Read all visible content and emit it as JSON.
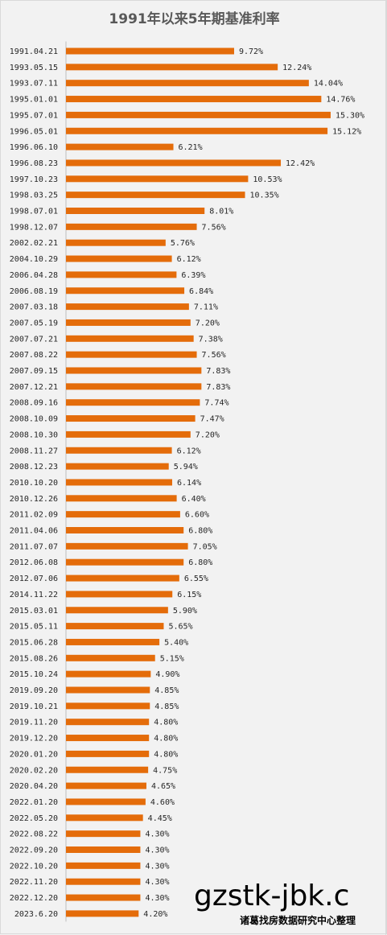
{
  "chart_data": {
    "type": "bar",
    "orientation": "horizontal",
    "title": "1991年以来5年期基准利率",
    "xlabel": "",
    "ylabel": "",
    "grid": false,
    "legend": "none",
    "bar_color": "#e46c0a",
    "xlim": [
      0,
      17.5
    ],
    "value_suffix": "%",
    "categories": [
      "1991.04.21",
      "1993.05.15",
      "1993.07.11",
      "1995.01.01",
      "1995.07.01",
      "1996.05.01",
      "1996.06.10",
      "1996.08.23",
      "1997.10.23",
      "1998.03.25",
      "1998.07.01",
      "1998.12.07",
      "2002.02.21",
      "2004.10.29",
      "2006.04.28",
      "2006.08.19",
      "2007.03.18",
      "2007.05.19",
      "2007.07.21",
      "2007.08.22",
      "2007.09.15",
      "2007.12.21",
      "2008.09.16",
      "2008.10.09",
      "2008.10.30",
      "2008.11.27",
      "2008.12.23",
      "2010.10.20",
      "2010.12.26",
      "2011.02.09",
      "2011.04.06",
      "2011.07.07",
      "2012.06.08",
      "2012.07.06",
      "2014.11.22",
      "2015.03.01",
      "2015.05.11",
      "2015.06.28",
      "2015.08.26",
      "2015.10.24",
      "2019.09.20",
      "2019.10.21",
      "2019.11.20",
      "2019.12.20",
      "2020.01.20",
      "2020.02.20",
      "2020.04.20",
      "2022.01.20",
      "2022.05.20",
      "2022.08.22",
      "2022.09.20",
      "2022.10.20",
      "2022.11.20",
      "2022.12.20",
      "2023.6.20"
    ],
    "values": [
      9.72,
      12.24,
      14.04,
      14.76,
      15.3,
      15.12,
      6.21,
      12.42,
      10.53,
      10.35,
      8.01,
      7.56,
      5.76,
      6.12,
      6.39,
      6.84,
      7.11,
      7.2,
      7.38,
      7.56,
      7.83,
      7.83,
      7.74,
      7.47,
      7.2,
      6.12,
      5.94,
      6.14,
      6.4,
      6.6,
      6.8,
      7.05,
      6.8,
      6.55,
      6.15,
      5.9,
      5.65,
      5.4,
      5.15,
      4.9,
      4.85,
      4.85,
      4.8,
      4.8,
      4.8,
      4.75,
      4.65,
      4.6,
      4.45,
      4.3,
      4.3,
      4.3,
      4.3,
      4.3,
      4.2
    ],
    "value_labels": [
      "9.72%",
      "12.24%",
      "14.04%",
      "14.76%",
      "15.30%",
      "15.12%",
      "6.21%",
      "12.42%",
      "10.53%",
      "10.35%",
      "8.01%",
      "7.56%",
      "5.76%",
      "6.12%",
      "6.39%",
      "6.84%",
      "7.11%",
      "7.20%",
      "7.38%",
      "7.56%",
      "7.83%",
      "7.83%",
      "7.74%",
      "7.47%",
      "7.20%",
      "6.12%",
      "5.94%",
      "6.14%",
      "6.40%",
      "6.60%",
      "6.80%",
      "7.05%",
      "6.80%",
      "6.55%",
      "6.15%",
      "5.90%",
      "5.65%",
      "5.40%",
      "5.15%",
      "4.90%",
      "4.85%",
      "4.85%",
      "4.80%",
      "4.80%",
      "4.80%",
      "4.75%",
      "4.65%",
      "4.60%",
      "4.45%",
      "4.30%",
      "4.30%",
      "4.30%",
      "4.30%",
      "4.30%",
      "4.20%"
    ]
  },
  "watermark": {
    "main": "gzstk-jbk.c",
    "sub": "诸葛找房数据研究中心整理"
  }
}
